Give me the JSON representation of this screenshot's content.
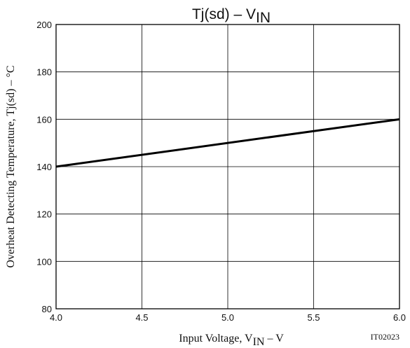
{
  "chart_data": {
    "type": "line",
    "title": "Tj(sd)  –  V",
    "title_sub": "IN",
    "xlabel": "Input Voltage, V",
    "xlabel_sub": "IN",
    "xlabel_unit": "  –  V",
    "ylabel": "Overheat Detecting Temperature, Tj(sd)  –  °C",
    "figure_code": "IT02023",
    "xlim": [
      4.0,
      6.0
    ],
    "ylim": [
      80,
      200
    ],
    "x_ticks": [
      "4.0",
      "4.5",
      "5.0",
      "5.5",
      "6.0"
    ],
    "y_ticks": [
      "80",
      "100",
      "120",
      "140",
      "160",
      "180",
      "200"
    ],
    "grid": true,
    "series": [
      {
        "x": [
          4.0,
          6.0
        ],
        "y": [
          140,
          160
        ],
        "color": "#000000"
      }
    ]
  }
}
